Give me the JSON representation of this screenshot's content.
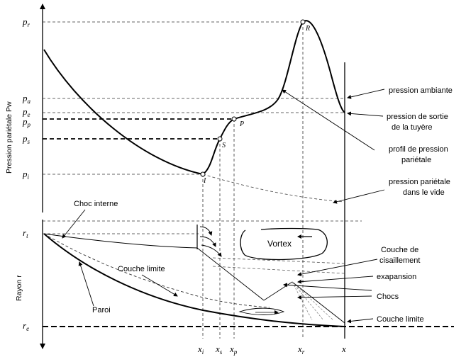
{
  "axes": {
    "y_upper_label": "Pression pariétale Pw",
    "y_lower_label": "Rayon r",
    "x_label": "x"
  },
  "pressure_ticks": [
    {
      "base": "p",
      "sub": "r"
    },
    {
      "base": "p",
      "sub": "a"
    },
    {
      "base": "p",
      "sub": "e"
    },
    {
      "base": "p",
      "sub": "p"
    },
    {
      "base": "p",
      "sub": "s"
    },
    {
      "base": "p",
      "sub": "i"
    }
  ],
  "radius_ticks": [
    {
      "base": "r",
      "sub": "t"
    },
    {
      "base": "r",
      "sub": "e"
    }
  ],
  "x_ticks": [
    {
      "base": "x",
      "sub": "i"
    },
    {
      "base": "x",
      "sub": "s"
    },
    {
      "base": "x",
      "sub": "p"
    },
    {
      "base": "x",
      "sub": "r"
    }
  ],
  "points": [
    "R",
    "P",
    "S",
    "I"
  ],
  "annotations_upper": [
    "pression ambiante",
    "pression de sortie",
    "de la tuyère",
    "profil de pression",
    "pariétale",
    "pression pariétale",
    "dans le vide"
  ],
  "annotations_lower": {
    "choc_interne": "Choc interne",
    "vortex": "Vortex",
    "couche_limite_inner": "Couche limite",
    "paroi": "Paroi",
    "cisaillement_1": "Couche de",
    "cisaillement_2": "cisaillement",
    "expansion": "exapansion",
    "chocs": "Chocs",
    "couche_limite_right": "Couche limite"
  }
}
